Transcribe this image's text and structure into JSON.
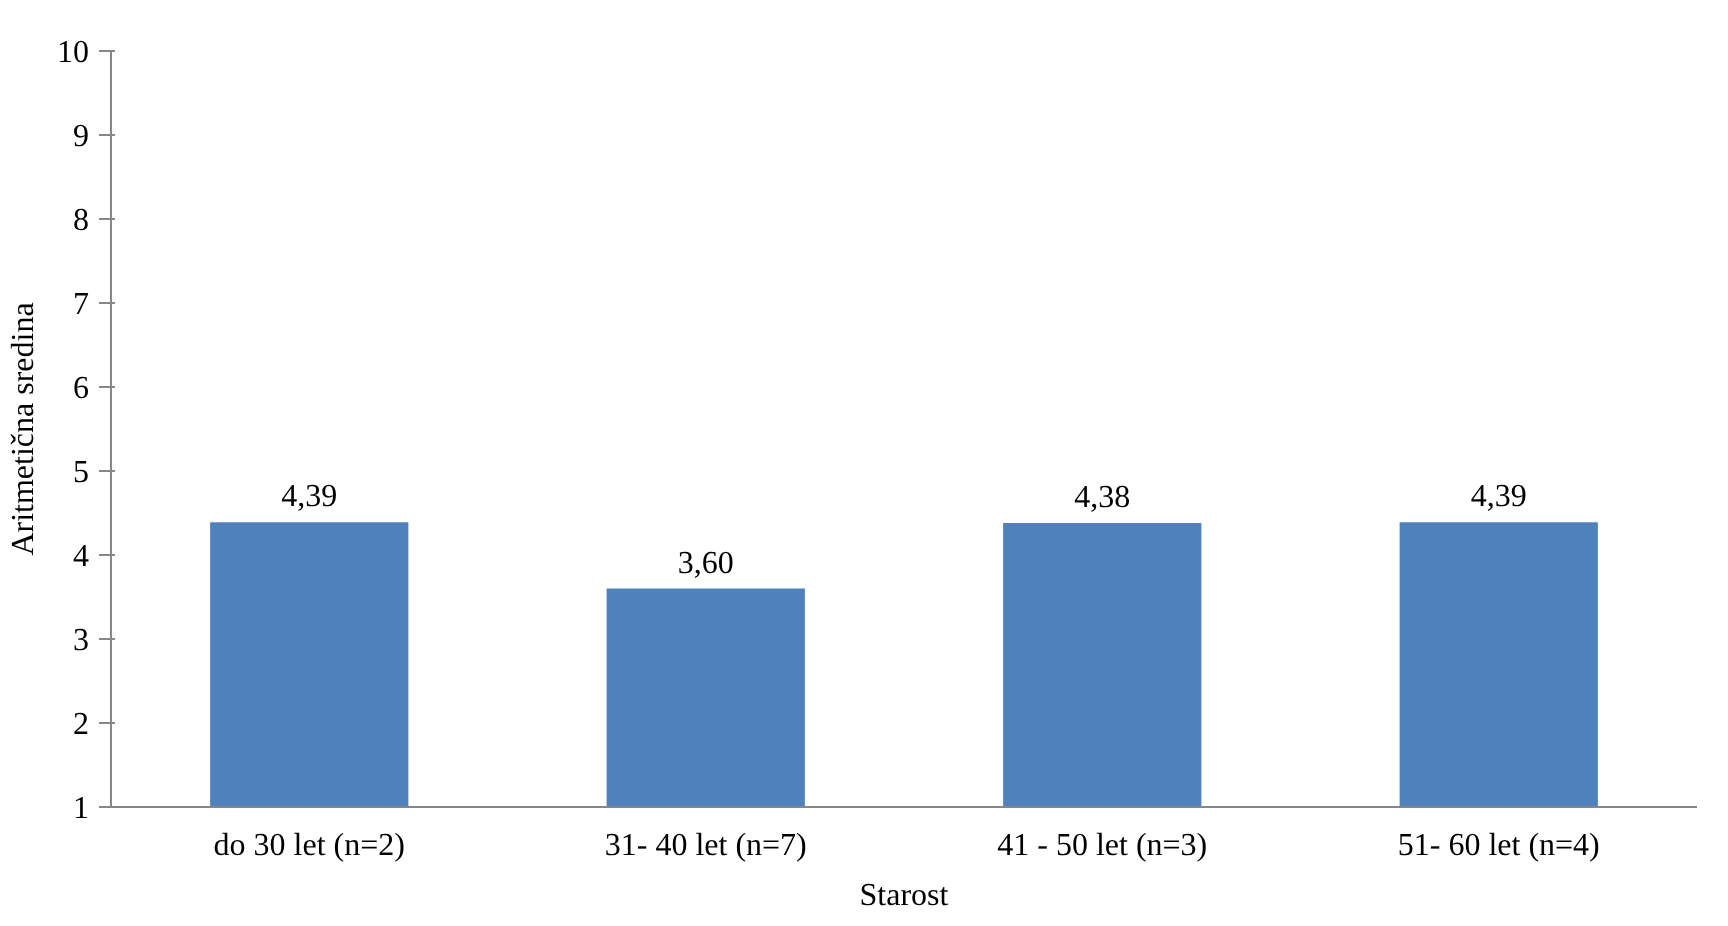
{
  "chart_data": {
    "type": "bar",
    "xlabel": "Starost",
    "ylabel": "Aritmetična sredina",
    "categories": [
      "do 30 let (n=2)",
      "31- 40 let (n=7)",
      "41 - 50 let (n=3)",
      "51- 60 let (n=4)"
    ],
    "values": [
      4.39,
      3.6,
      4.38,
      4.39
    ],
    "value_labels": [
      "4,39",
      "3,60",
      "4,38",
      "4,39"
    ],
    "color": "#4f81bd",
    "ylim": [
      1,
      10
    ],
    "yticks": [
      1,
      2,
      3,
      4,
      5,
      6,
      7,
      8,
      9,
      10
    ],
    "grid": false
  }
}
